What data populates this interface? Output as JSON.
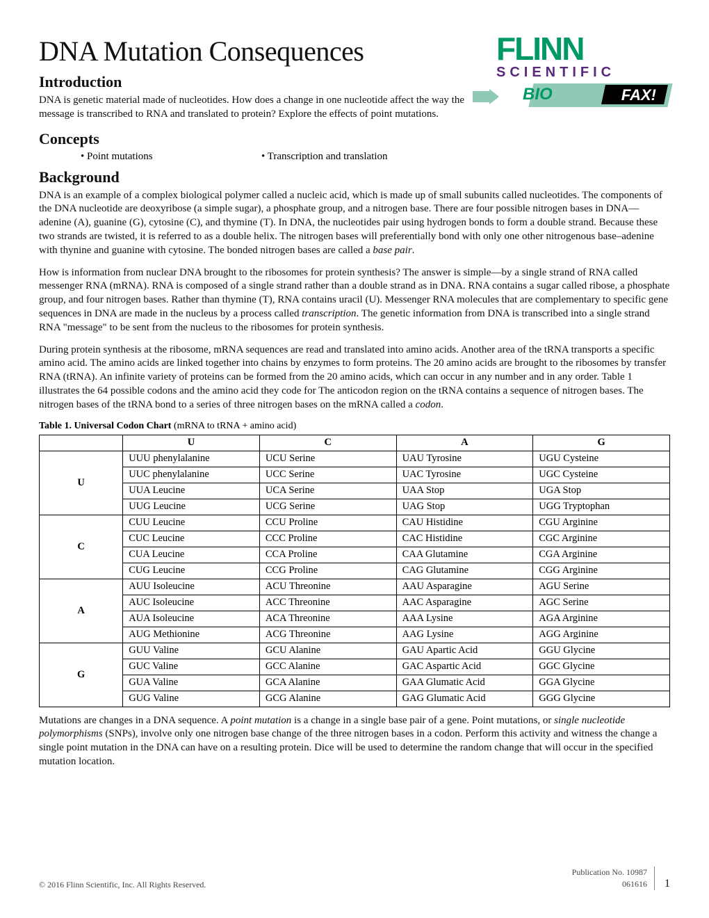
{
  "title": "DNA Mutation Consequences",
  "logo": {
    "line1": "FLINN",
    "line2": "SCIENTIFIC",
    "bio": "BIO",
    "fax": "FAX!"
  },
  "sections": {
    "intro_h": "Introduction",
    "intro_p": "DNA is genetic material made of nucleotides. How does a change in one nucleotide affect the way the message is transcribed to RNA and translated to protein? Explore the effects of point mutations.",
    "concepts_h": "Concepts",
    "concepts": [
      "Point mutations",
      "Transcription and translation"
    ],
    "bg_h": "Background",
    "bg_p1": "DNA is an example of a complex biological polymer called a nucleic acid, which is made up of small subunits called nucleotides. The components of the DNA nucleotide are deoxyribose (a simple sugar), a phosphate group, and a nitrogen base. There are four possible nitrogen bases in DNA—adenine (A), guanine (G), cytosine (C), and thymine (T). In DNA, the nucleotides pair using hydrogen bonds to form a double strand. Because these two strands are twisted, it is referred to as a double helix. The nitrogen bases will preferentially bond with only one other nitrogenous base–adenine with thynine and guanine with cytosine. The bonded nitrogen bases are called a ",
    "bg_p1_i": "base pair",
    "bg_p1_end": ".",
    "bg_p2a": "How is information from nuclear DNA brought to the ribosomes for protein synthesis? The answer is simple—by a single strand of RNA called messenger RNA (mRNA). RNA is composed of a single strand rather than a double strand as in DNA. RNA contains a sugar called ribose, a phosphate group, and four nitrogen bases. Rather than thymine (T), RNA contains uracil (U). Messenger RNA molecules that are complementary to specific gene sequences in DNA are made in the nucleus by a process called ",
    "bg_p2_i": "transcription",
    "bg_p2b": ". The genetic information from DNA is transcribed into a single strand RNA \"message\" to be sent from the nucleus to the ribosomes for protein synthesis.",
    "bg_p3a": "During protein synthesis at the ribosome, mRNA sequences are read and translated into amino acids. Another area of the tRNA transports a specific amino acid. The amino acids are linked together into chains by enzymes to form proteins. The 20 amino acids are brought to the ribosomes by transfer RNA (tRNA). An infinite variety of proteins can be formed from the 20 amino acids, which can occur in any number and in any order. Table 1 illustrates the 64 possible codons and the amino acid they code for The anticodon region on the tRNA contains a sequence of nitrogen bases. The nitrogen bases of the tRNA bond to a series of three nitrogen bases on the mRNA called a ",
    "bg_p3_i": "codon",
    "bg_p3b": ".",
    "table_caption_b": "Table 1.  Universal Codon Chart ",
    "table_caption_r": "(mRNA to tRNA + amino acid)",
    "after_table_a": "Mutations are changes in a DNA sequence. A ",
    "after_table_i1": "point mutation",
    "after_table_b": " is a change in a single base pair of a gene. Point mutations, or ",
    "after_table_i2": "single nucleotide polymorphisms",
    "after_table_c": " (SNPs), involve only one nitrogen base change of the three nitrogen bases in a codon. Perform this activity and witness the change a single point mutation in the DNA can have on a resulting protein. Dice will be used to determine the random change that will occur in the specified mutation location."
  },
  "codon_table": {
    "col_headers": [
      "U",
      "C",
      "A",
      "G"
    ],
    "row_headers": [
      "U",
      "C",
      "A",
      "G"
    ],
    "rows": {
      "U": [
        [
          "UUU phenylalanine",
          "UCU Serine",
          "UAU Tyrosine",
          "UGU Cysteine"
        ],
        [
          "UUC phenylalanine",
          "UCC Serine",
          "UAC Tyrosine",
          "UGC Cysteine"
        ],
        [
          "UUA Leucine",
          "UCA Serine",
          "UAA Stop",
          "UGA Stop"
        ],
        [
          "UUG Leucine",
          "UCG Serine",
          "UAG Stop",
          "UGG Tryptophan"
        ]
      ],
      "C": [
        [
          "CUU Leucine",
          "CCU Proline",
          "CAU Histidine",
          "CGU Arginine"
        ],
        [
          "CUC Leucine",
          "CCC Proline",
          "CAC Histidine",
          "CGC Arginine"
        ],
        [
          "CUA Leucine",
          "CCA Proline",
          "CAA Glutamine",
          "CGA Arginine"
        ],
        [
          "CUG Leucine",
          "CCG Proline",
          "CAG Glutamine",
          "CGG Arginine"
        ]
      ],
      "A": [
        [
          "AUU Isoleucine",
          "ACU Threonine",
          "AAU Asparagine",
          "AGU Serine"
        ],
        [
          "AUC Isoleucine",
          "ACC Threonine",
          "AAC Asparagine",
          "AGC Serine"
        ],
        [
          "AUA Isoleucine",
          "ACA Threonine",
          "AAA Lysine",
          "AGA Arginine"
        ],
        [
          "AUG Methionine",
          "ACG Threonine",
          "AAG Lysine",
          "AGG Arginine"
        ]
      ],
      "G": [
        [
          "GUU Valine",
          "GCU Alanine",
          "GAU Apartic Acid",
          "GGU Glycine"
        ],
        [
          "GUC Valine",
          "GCC Alanine",
          "GAC Aspartic Acid",
          "GGC Glycine"
        ],
        [
          "GUA Valine",
          "GCA Alanine",
          "GAA Glumatic Acid",
          "GGA Glycine"
        ],
        [
          "GUG Valine",
          "GCG Alanine",
          "GAG Glumatic Acid",
          "GGG Glycine"
        ]
      ]
    }
  },
  "footer": {
    "copyright": "© 2016 Flinn Scientific, Inc. All Rights Reserved.",
    "pub": "Publication No. 10987",
    "date": "061616",
    "page": "1"
  }
}
